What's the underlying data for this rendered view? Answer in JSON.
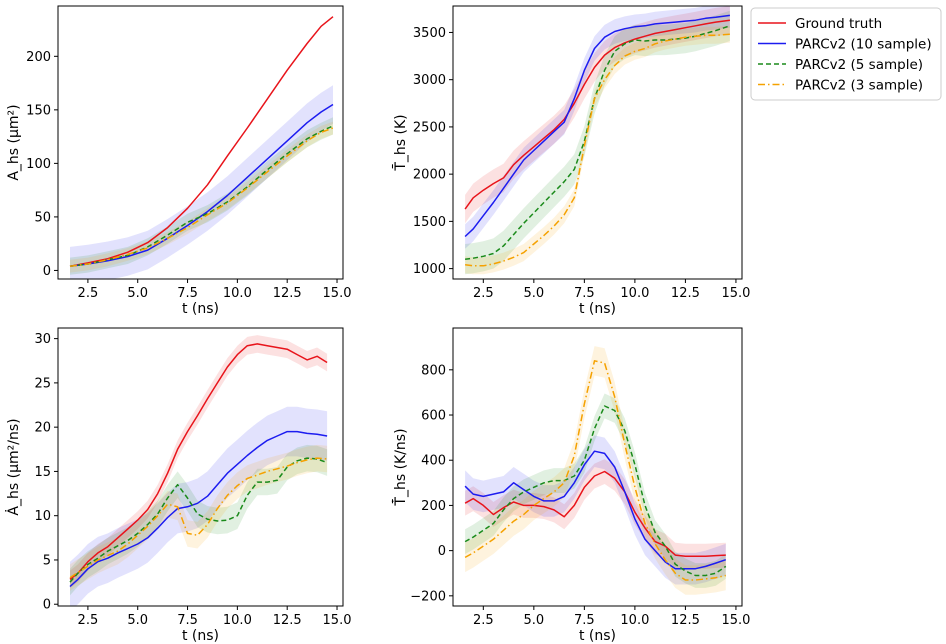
{
  "legend": {
    "entries": [
      {
        "label": "Ground truth",
        "color": "#e8141b",
        "dash": "solid"
      },
      {
        "label": "PARCv2 (10 sample)",
        "color": "#1c1cf0",
        "dash": "solid"
      },
      {
        "label": "PARCv2 (5 sample)",
        "color": "#1a8a1a",
        "dash": "dashed"
      },
      {
        "label": "PARCv2 (3 sample)",
        "color": "#f5a100",
        "dash": "dashdot"
      }
    ]
  },
  "chart_data": [
    {
      "type": "line",
      "id": "area",
      "xlabel": "t (ns)",
      "ylabel": "A_hs (μm²)",
      "xlim": [
        1.0,
        15.3
      ],
      "ylim": [
        -8,
        247
      ],
      "xticks": [
        {
          "v": 2.5,
          "label": "2.5"
        },
        {
          "v": 5.0,
          "label": "5.0"
        },
        {
          "v": 7.5,
          "label": "7.5"
        },
        {
          "v": 10.0,
          "label": "10.0"
        },
        {
          "v": 12.5,
          "label": "12.5"
        },
        {
          "v": 15.0,
          "label": "15.0"
        }
      ],
      "yticks": [
        {
          "v": 0,
          "label": "0"
        },
        {
          "v": 50,
          "label": "50"
        },
        {
          "v": 100,
          "label": "100"
        },
        {
          "v": 150,
          "label": "150"
        },
        {
          "v": 200,
          "label": "200"
        }
      ],
      "x": [
        1.6,
        2.5,
        3.5,
        4.5,
        5.5,
        6.5,
        7.5,
        8.5,
        9.5,
        10.5,
        11.5,
        12.5,
        13.5,
        14.2,
        14.8
      ],
      "series": [
        {
          "name": "Ground truth",
          "values": [
            4,
            7,
            11,
            17,
            26,
            40,
            58,
            80,
            107,
            133,
            160,
            187,
            212,
            228,
            237
          ],
          "band": 0
        },
        {
          "name": "PARCv2 (10 sample)",
          "values": [
            4,
            6,
            9,
            13,
            19,
            30,
            42,
            55,
            70,
            87,
            104,
            121,
            138,
            148,
            155
          ],
          "band": 18
        },
        {
          "name": "PARCv2 (5 sample)",
          "values": [
            4,
            6,
            10,
            14,
            22,
            33,
            45,
            53,
            64,
            78,
            94,
            109,
            123,
            130,
            135
          ],
          "band": 8
        },
        {
          "name": "PARCv2 (3 sample)",
          "values": [
            4,
            6,
            10,
            15,
            21,
            30,
            40,
            52,
            63,
            77,
            92,
            107,
            121,
            129,
            133
          ],
          "band": 6
        }
      ]
    },
    {
      "type": "line",
      "id": "temperature",
      "xlabel": "t (ns)",
      "ylabel": "T̄_hs (K)",
      "xlim": [
        1.0,
        15.3
      ],
      "ylim": [
        890,
        3780
      ],
      "xticks": [
        {
          "v": 2.5,
          "label": "2.5"
        },
        {
          "v": 5.0,
          "label": "5.0"
        },
        {
          "v": 7.5,
          "label": "7.5"
        },
        {
          "v": 10.0,
          "label": "10.0"
        },
        {
          "v": 12.5,
          "label": "12.5"
        },
        {
          "v": 15.0,
          "label": "15.0"
        }
      ],
      "yticks": [
        {
          "v": 1000,
          "label": "1000"
        },
        {
          "v": 1500,
          "label": "1500"
        },
        {
          "v": 2000,
          "label": "2000"
        },
        {
          "v": 2500,
          "label": "2500"
        },
        {
          "v": 3000,
          "label": "3000"
        },
        {
          "v": 3500,
          "label": "3500"
        }
      ],
      "x": [
        1.6,
        2.0,
        2.5,
        3.0,
        3.5,
        4.0,
        4.5,
        5.0,
        5.5,
        6.0,
        6.5,
        7.0,
        7.5,
        8.0,
        8.5,
        9.0,
        9.5,
        10.0,
        10.5,
        11.0,
        11.5,
        12.0,
        12.5,
        13.0,
        13.5,
        14.0,
        14.7
      ],
      "series": [
        {
          "name": "Ground truth",
          "values": [
            1630,
            1750,
            1830,
            1900,
            1960,
            2100,
            2200,
            2290,
            2380,
            2470,
            2580,
            2750,
            2950,
            3130,
            3260,
            3340,
            3390,
            3430,
            3460,
            3490,
            3510,
            3530,
            3550,
            3570,
            3590,
            3610,
            3630
          ],
          "band": 150
        },
        {
          "name": "PARCv2 (10 sample)",
          "values": [
            1340,
            1420,
            1560,
            1700,
            1850,
            2000,
            2150,
            2250,
            2350,
            2450,
            2550,
            2800,
            3100,
            3330,
            3450,
            3510,
            3540,
            3560,
            3570,
            3590,
            3600,
            3610,
            3620,
            3630,
            3650,
            3660,
            3680
          ],
          "band": 130
        },
        {
          "name": "PARCv2 (5 sample)",
          "values": [
            1100,
            1110,
            1130,
            1160,
            1240,
            1360,
            1480,
            1590,
            1700,
            1810,
            1920,
            2050,
            2350,
            2800,
            3100,
            3300,
            3380,
            3420,
            3410,
            3420,
            3420,
            3430,
            3440,
            3460,
            3490,
            3520,
            3570
          ],
          "band": 160
        },
        {
          "name": "PARCv2 (3 sample)",
          "values": [
            1040,
            1030,
            1030,
            1050,
            1080,
            1120,
            1170,
            1260,
            1350,
            1450,
            1570,
            1750,
            2300,
            2800,
            3000,
            3150,
            3250,
            3300,
            3330,
            3380,
            3410,
            3430,
            3450,
            3460,
            3470,
            3470,
            3480
          ],
          "band": 90
        }
      ]
    },
    {
      "type": "line",
      "id": "area-rate",
      "xlabel": "t (ns)",
      "ylabel": "Ȧ_hs (μm²/ns)",
      "xlim": [
        1.0,
        15.3
      ],
      "ylim": [
        -0.2,
        31.2
      ],
      "xticks": [
        {
          "v": 2.5,
          "label": "2.5"
        },
        {
          "v": 5.0,
          "label": "5.0"
        },
        {
          "v": 7.5,
          "label": "7.5"
        },
        {
          "v": 10.0,
          "label": "10.0"
        },
        {
          "v": 12.5,
          "label": "12.5"
        },
        {
          "v": 15.0,
          "label": "15.0"
        }
      ],
      "yticks": [
        {
          "v": 0,
          "label": "0"
        },
        {
          "v": 5,
          "label": "5"
        },
        {
          "v": 10,
          "label": "10"
        },
        {
          "v": 15,
          "label": "15"
        },
        {
          "v": 20,
          "label": "20"
        },
        {
          "v": 25,
          "label": "25"
        },
        {
          "v": 30,
          "label": "30"
        }
      ],
      "x": [
        1.6,
        2.0,
        2.5,
        3.0,
        3.5,
        4.0,
        4.5,
        5.0,
        5.5,
        6.0,
        6.5,
        7.0,
        7.5,
        8.0,
        8.5,
        9.0,
        9.5,
        10.0,
        10.5,
        11.0,
        11.5,
        12.0,
        12.5,
        13.0,
        13.5,
        14.0,
        14.5
      ],
      "series": [
        {
          "name": "Ground truth",
          "values": [
            2.8,
            3.5,
            4.8,
            5.8,
            6.5,
            7.5,
            8.5,
            9.5,
            10.7,
            12.5,
            14.8,
            17.5,
            19.5,
            21.3,
            23.2,
            25.0,
            26.8,
            28.2,
            29.2,
            29.4,
            29.2,
            29.0,
            28.8,
            28.2,
            27.6,
            28.0,
            27.3
          ],
          "band": 1.0
        },
        {
          "name": "PARCv2 (10 sample)",
          "values": [
            2.0,
            2.8,
            4.0,
            4.8,
            5.2,
            5.8,
            6.3,
            6.8,
            7.5,
            8.6,
            9.8,
            10.8,
            11.0,
            11.4,
            12.2,
            13.5,
            14.8,
            15.8,
            16.8,
            17.7,
            18.5,
            19.0,
            19.5,
            19.5,
            19.3,
            19.2,
            19.0
          ],
          "band": 2.8
        },
        {
          "name": "PARCv2 (5 sample)",
          "values": [
            2.5,
            3.5,
            4.5,
            5.2,
            6.0,
            6.6,
            7.2,
            8.0,
            9.0,
            10.2,
            12.0,
            13.5,
            12.0,
            10.2,
            9.6,
            9.4,
            9.5,
            10.0,
            12.3,
            13.8,
            13.8,
            14.0,
            15.5,
            16.2,
            16.5,
            16.4,
            16.0
          ],
          "band": 1.5
        },
        {
          "name": "PARCv2 (3 sample)",
          "values": [
            3.0,
            3.6,
            4.3,
            5.0,
            5.5,
            6.0,
            6.8,
            7.8,
            8.8,
            10.0,
            11.3,
            11.0,
            8.0,
            7.8,
            9.0,
            10.8,
            12.3,
            13.4,
            14.2,
            14.6,
            15.0,
            15.3,
            15.6,
            16.0,
            16.3,
            16.5,
            16.4
          ],
          "band": 1.5
        }
      ]
    },
    {
      "type": "line",
      "id": "temperature-rate",
      "xlabel": "t (ns)",
      "ylabel": "T̄̇_hs (K/ns)",
      "xlim": [
        1.0,
        15.3
      ],
      "ylim": [
        -245,
        985
      ],
      "xticks": [
        {
          "v": 2.5,
          "label": "2.5"
        },
        {
          "v": 5.0,
          "label": "5.0"
        },
        {
          "v": 7.5,
          "label": "7.5"
        },
        {
          "v": 10.0,
          "label": "10.0"
        },
        {
          "v": 12.5,
          "label": "12.5"
        },
        {
          "v": 15.0,
          "label": "15.0"
        }
      ],
      "yticks": [
        {
          "v": -200,
          "label": "−200"
        },
        {
          "v": 0,
          "label": "0"
        },
        {
          "v": 200,
          "label": "200"
        },
        {
          "v": 400,
          "label": "400"
        },
        {
          "v": 600,
          "label": "600"
        },
        {
          "v": 800,
          "label": "800"
        }
      ],
      "x": [
        1.6,
        2.0,
        2.5,
        3.0,
        3.5,
        4.0,
        4.5,
        5.0,
        5.5,
        6.0,
        6.5,
        7.0,
        7.5,
        8.0,
        8.5,
        9.0,
        9.5,
        10.0,
        10.5,
        11.0,
        11.5,
        12.0,
        12.5,
        13.0,
        13.5,
        14.0,
        14.5
      ],
      "series": [
        {
          "name": "Ground truth",
          "values": [
            210,
            230,
            200,
            160,
            190,
            215,
            200,
            200,
            195,
            180,
            150,
            200,
            280,
            330,
            350,
            320,
            260,
            170,
            100,
            40,
            20,
            -20,
            -25,
            -25,
            -25,
            -22,
            -20
          ],
          "band": 55
        },
        {
          "name": "PARCv2 (10 sample)",
          "values": [
            285,
            250,
            240,
            250,
            260,
            300,
            270,
            240,
            220,
            220,
            240,
            300,
            380,
            440,
            430,
            370,
            260,
            140,
            50,
            0,
            -50,
            -80,
            -80,
            -80,
            -70,
            -55,
            -40
          ],
          "band": 70
        },
        {
          "name": "PARCv2 (5 sample)",
          "values": [
            40,
            60,
            90,
            120,
            180,
            230,
            260,
            280,
            300,
            310,
            310,
            330,
            400,
            540,
            640,
            620,
            530,
            380,
            200,
            80,
            20,
            -60,
            -90,
            -110,
            -110,
            -100,
            -70
          ],
          "band": 55
        },
        {
          "name": "PARCv2 (3 sample)",
          "values": [
            -30,
            -10,
            20,
            50,
            90,
            130,
            160,
            200,
            230,
            260,
            300,
            420,
            650,
            840,
            830,
            680,
            470,
            280,
            120,
            30,
            -40,
            -100,
            -130,
            -130,
            -125,
            -120,
            -110
          ],
          "band": 65
        }
      ]
    }
  ]
}
